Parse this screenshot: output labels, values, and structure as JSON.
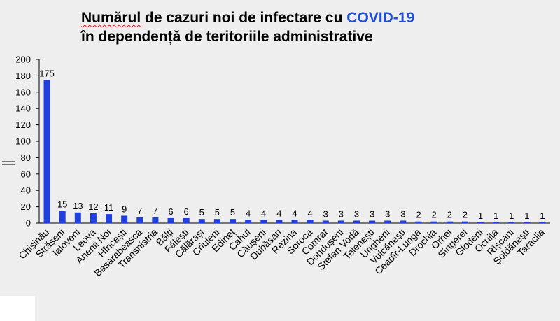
{
  "title": {
    "line1_prefix": "Numărul",
    "line1_middle": " de cazuri noi de infectare cu ",
    "line1_highlight": "COVID-19",
    "line2": "în dependență de teritoriile administrative"
  },
  "colors": {
    "bar": "#1f3fe0",
    "highlight": "#1f4fd6",
    "background": "#eeeeee"
  },
  "chart_data": {
    "type": "bar",
    "categories": [
      "Chișinău",
      "Strășeni",
      "Ialoveni",
      "Leova",
      "Anenii Noi",
      "Hîncești",
      "Basarabeasca",
      "Transnistria",
      "Bălți",
      "Fălești",
      "Călărași",
      "Criuleni",
      "Edineț",
      "Cahul",
      "Căușeni",
      "Dubăsari",
      "Rezina",
      "Soroca",
      "Comrat",
      "Dondușeni",
      "Ștefan Vodă",
      "Telenești",
      "Ungheni",
      "Vulcănești",
      "Ceadîr-Lunga",
      "Drochia",
      "Orhei",
      "Sîngerei",
      "Glodeni",
      "Ocnița",
      "Rîșcani",
      "Șoldănești",
      "Taraclia"
    ],
    "values": [
      175,
      15,
      13,
      12,
      11,
      9,
      7,
      7,
      6,
      6,
      5,
      5,
      5,
      4,
      4,
      4,
      4,
      4,
      3,
      3,
      3,
      3,
      3,
      3,
      2,
      2,
      2,
      2,
      1,
      1,
      1,
      1,
      1
    ],
    "data_labels": [
      "175",
      "15",
      "13",
      "12",
      "11",
      "9",
      "7",
      "7",
      "6",
      "6",
      "5",
      "5",
      "5",
      "4",
      "4",
      "4",
      "4",
      "4",
      "3",
      "3",
      "3",
      "3",
      "3",
      "3",
      "2",
      "2",
      "2",
      "2",
      "1",
      "1",
      "1",
      "1",
      "1"
    ],
    "title": "Numărul de cazuri noi de infectare cu COVID-19 în dependență de teritoriile administrative",
    "xlabel": "",
    "ylabel": "",
    "ylim": [
      0,
      200
    ],
    "yticks": [
      "0",
      "20",
      "40",
      "60",
      "80",
      "100",
      "120",
      "140",
      "160",
      "180",
      "200"
    ],
    "grid": false,
    "legend": "none"
  }
}
